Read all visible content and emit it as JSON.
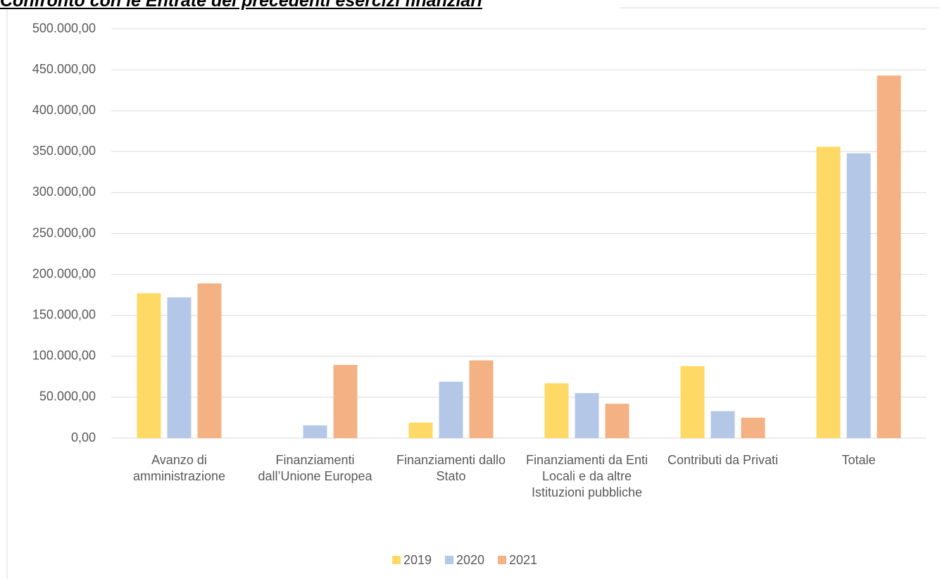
{
  "chart_data": {
    "type": "bar",
    "title": "Confronto con le Entrate dei precedenti esercizi finanziari",
    "categories": [
      "Avanzo di amministrazione",
      "Finanziamenti dall’Unione Europea",
      "Finanziamenti dallo Stato",
      "Finanziamenti da Enti Locali e  da altre Istituzioni pubbliche",
      "Contributi da Privati",
      "Totale"
    ],
    "series": [
      {
        "name": "2019",
        "color": "#ffd966",
        "values": [
          177000,
          0,
          19000,
          67000,
          88000,
          356000
        ]
      },
      {
        "name": "2020",
        "color": "#b4c7e7",
        "values": [
          172000,
          15500,
          69000,
          55000,
          33000,
          348000
        ]
      },
      {
        "name": "2021",
        "color": "#f4b183",
        "values": [
          189000,
          89500,
          95000,
          42000,
          25000,
          443000
        ]
      }
    ],
    "ylim": [
      0,
      500000
    ],
    "yticks": [
      {
        "value": 0,
        "label": "0,00"
      },
      {
        "value": 50000,
        "label": "50.000,00"
      },
      {
        "value": 100000,
        "label": "100.000,00"
      },
      {
        "value": 150000,
        "label": "150.000,00"
      },
      {
        "value": 200000,
        "label": "200.000,00"
      },
      {
        "value": 250000,
        "label": "250.000,00"
      },
      {
        "value": 300000,
        "label": "300.000,00"
      },
      {
        "value": 350000,
        "label": "350.000,00"
      },
      {
        "value": 400000,
        "label": "400.000,00"
      },
      {
        "value": 450000,
        "label": "450.000,00"
      },
      {
        "value": 500000,
        "label": "500.000,00"
      }
    ],
    "grid": true,
    "legend": "bottom"
  }
}
